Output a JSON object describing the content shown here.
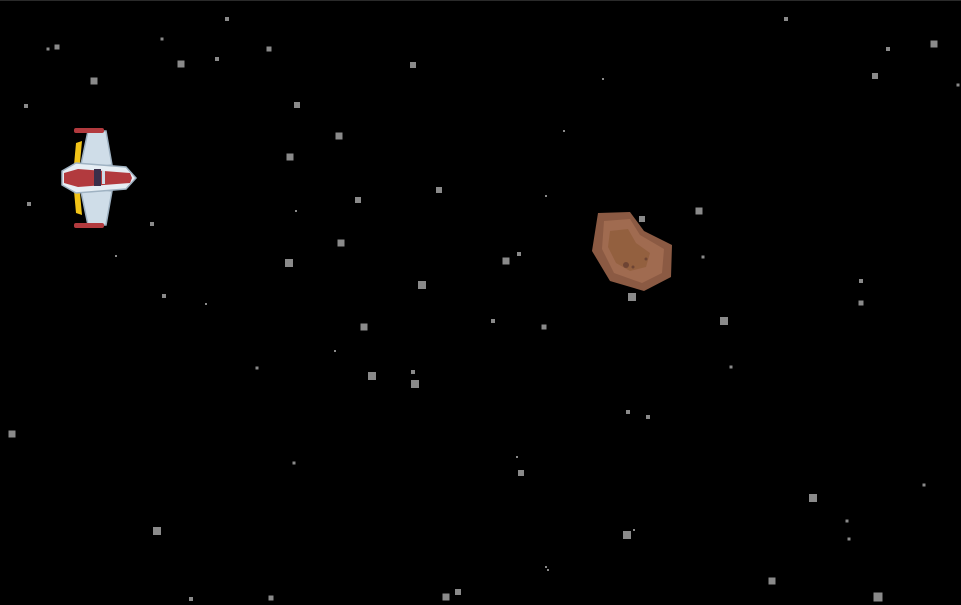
{
  "scene": {
    "background_color": "#000000",
    "star_color": "#8a8a8a",
    "player_ship": {
      "icon": "spaceship-icon",
      "heading": "right",
      "colors": {
        "body": "#cfdde8",
        "stripe": "#b23a3e",
        "accent": "#f2c418",
        "cockpit": "#3b2f4a"
      }
    },
    "asteroid": {
      "icon": "asteroid-icon",
      "colors": {
        "outer": "#8b5a43",
        "inner": "#a06b50",
        "spots": "#6e4433"
      }
    }
  }
}
